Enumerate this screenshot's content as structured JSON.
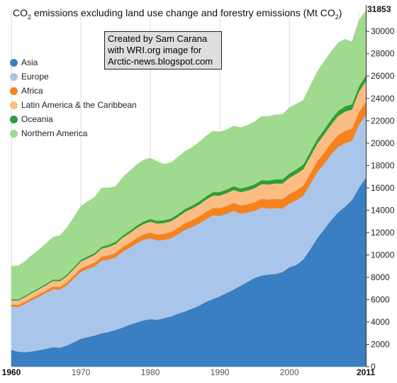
{
  "title": {
    "text": "CO2 emissions excluding land use change and forestry emissions (Mt CO2)"
  },
  "credit": {
    "line1": "Created by Sam Carana",
    "line2": "with WRI.org image for",
    "line3": "Arctic-news.blogspot.com"
  },
  "legend": [
    {
      "label": "Asia",
      "color": "#3a7fc1"
    },
    {
      "label": "Europe",
      "color": "#a9c6ea"
    },
    {
      "label": "Africa",
      "color": "#f5821f"
    },
    {
      "label": "Latin America & the Caribbean",
      "color": "#fbbd84"
    },
    {
      "label": "Oceania",
      "color": "#2e9e3a"
    },
    {
      "label": "Northern America",
      "color": "#9fda8e"
    }
  ],
  "chart_data": {
    "type": "area",
    "stacked": true,
    "x": [
      1960,
      1961,
      1962,
      1963,
      1964,
      1965,
      1966,
      1967,
      1968,
      1969,
      1970,
      1971,
      1972,
      1973,
      1974,
      1975,
      1976,
      1977,
      1978,
      1979,
      1980,
      1981,
      1982,
      1983,
      1984,
      1985,
      1986,
      1987,
      1988,
      1989,
      1990,
      1991,
      1992,
      1993,
      1994,
      1995,
      1996,
      1997,
      1998,
      1999,
      2000,
      2001,
      2002,
      2003,
      2004,
      2005,
      2006,
      2007,
      2008,
      2009,
      2010,
      2011
    ],
    "xticks": [
      1960,
      1970,
      1980,
      1990,
      2000,
      2011
    ],
    "yticks": [
      0,
      2000,
      4000,
      6000,
      8000,
      10000,
      12000,
      14000,
      16000,
      18000,
      20000,
      22000,
      24000,
      26000,
      28000,
      30000
    ],
    "ymax_label": "31853",
    "ylim": [
      0,
      31853
    ],
    "xlim": [
      1960,
      2011
    ],
    "series": [
      {
        "name": "Asia",
        "color": "#3a7fc1",
        "values": [
          1500,
          1350,
          1300,
          1380,
          1480,
          1600,
          1750,
          1700,
          1900,
          2200,
          2500,
          2650,
          2800,
          3000,
          3100,
          3300,
          3500,
          3750,
          3950,
          4150,
          4250,
          4200,
          4350,
          4500,
          4750,
          4950,
          5200,
          5450,
          5800,
          6050,
          6300,
          6600,
          6900,
          7250,
          7600,
          7950,
          8150,
          8250,
          8300,
          8450,
          8900,
          9100,
          9600,
          10500,
          11500,
          12300,
          13100,
          13800,
          14300,
          14900,
          16000,
          16900
        ]
      },
      {
        "name": "Europe",
        "color": "#a9c6ea",
        "values": [
          3900,
          4000,
          4350,
          4600,
          4800,
          5000,
          5200,
          5200,
          5400,
          5700,
          6000,
          6100,
          6200,
          6500,
          6500,
          6500,
          6800,
          6900,
          7100,
          7200,
          7250,
          7100,
          7000,
          7000,
          7100,
          7300,
          7300,
          7350,
          7400,
          7500,
          7200,
          7100,
          7050,
          6450,
          6200,
          6000,
          6100,
          5900,
          5900,
          5700,
          5700,
          5800,
          5700,
          5850,
          5900,
          5850,
          5900,
          5850,
          5700,
          5300,
          5650,
          5650
        ]
      },
      {
        "name": "Africa",
        "color": "#f5821f",
        "values": [
          170,
          175,
          185,
          195,
          205,
          215,
          230,
          240,
          255,
          270,
          290,
          310,
          330,
          350,
          370,
          390,
          410,
          430,
          450,
          480,
          500,
          520,
          540,
          560,
          580,
          600,
          610,
          630,
          650,
          660,
          680,
          690,
          700,
          720,
          740,
          760,
          780,
          800,
          820,
          840,
          860,
          880,
          900,
          940,
          980,
          1000,
          1020,
          1060,
          1100,
          1100,
          1130,
          1150
        ]
      },
      {
        "name": "Latin America & the Caribbean",
        "color": "#fbbd84",
        "values": [
          380,
          400,
          420,
          440,
          460,
          480,
          500,
          520,
          550,
          580,
          620,
          650,
          680,
          720,
          760,
          800,
          830,
          860,
          900,
          940,
          980,
          990,
          980,
          960,
          990,
          1010,
          1040,
          1070,
          1090,
          1110,
          1130,
          1150,
          1170,
          1200,
          1230,
          1270,
          1310,
          1350,
          1380,
          1400,
          1440,
          1470,
          1480,
          1520,
          1570,
          1620,
          1650,
          1700,
          1730,
          1700,
          1800,
          1850
        ]
      },
      {
        "name": "Oceania",
        "color": "#2e9e3a",
        "values": [
          90,
          95,
          100,
          105,
          110,
          115,
          120,
          125,
          135,
          145,
          155,
          160,
          165,
          175,
          180,
          185,
          195,
          205,
          210,
          220,
          230,
          240,
          245,
          250,
          255,
          260,
          270,
          280,
          290,
          300,
          310,
          315,
          320,
          325,
          330,
          335,
          345,
          355,
          365,
          375,
          390,
          400,
          410,
          420,
          430,
          440,
          450,
          460,
          470,
          470,
          480,
          490
        ]
      },
      {
        "name": "Northern America",
        "color": "#9fda8e",
        "values": [
          2960,
          3010,
          3100,
          3280,
          3420,
          3620,
          3800,
          3950,
          4200,
          4480,
          4800,
          4900,
          5000,
          5250,
          5100,
          4950,
          5200,
          5350,
          5450,
          5500,
          5450,
          5300,
          5000,
          5000,
          5100,
          5150,
          5200,
          5300,
          5400,
          5450,
          5380,
          5350,
          5400,
          5450,
          5500,
          5600,
          5700,
          5750,
          5770,
          5800,
          5900,
          5850,
          5750,
          5900,
          6000,
          6100,
          6050,
          6100,
          6000,
          5600,
          5900,
          5813
        ]
      }
    ]
  }
}
